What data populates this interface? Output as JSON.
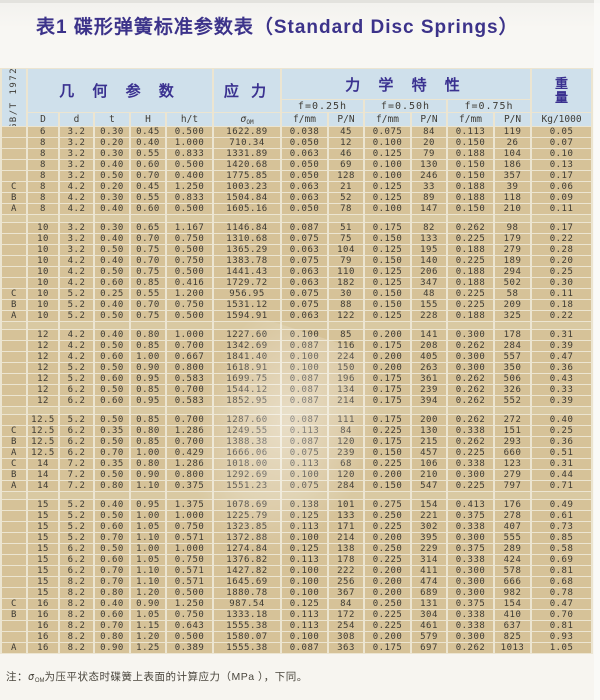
{
  "page": {
    "title": "表1 碟形弹簧标准参数表（Standard Disc Springs）",
    "standard_label": "GB/T 1972"
  },
  "table": {
    "header": {
      "geometry": "几 何 参 数",
      "stress": "应 力",
      "mechanical": "力 学 特 性",
      "weight_top": "重",
      "weight_bottom": "量",
      "deflections": [
        "f=0.25h",
        "f=0.50h",
        "f=0.75h"
      ],
      "columns": [
        "D",
        "d",
        "t",
        "H",
        "h/t"
      ],
      "sigma": "σ",
      "sigma_sub": "OM",
      "f_label": "f/mm",
      "p_label": "P/N",
      "weight_unit": "Kg/1000"
    },
    "colors": {
      "header_blue": "#cfe0eb",
      "cell_tan": "#d6c298",
      "grid_line": "#ece5d1",
      "title_purple": "#3c338a",
      "text_dark": "#3e3b34"
    },
    "groups": [
      {
        "rows": [
          [
            "",
            "6",
            "3.2",
            "0.30",
            "0.45",
            "0.500",
            "1622.89",
            "0.038",
            "45",
            "0.075",
            "84",
            "0.113",
            "119",
            "0.05"
          ],
          [
            "",
            "8",
            "3.2",
            "0.20",
            "0.40",
            "1.000",
            "710.34",
            "0.050",
            "12",
            "0.100",
            "20",
            "0.150",
            "26",
            "0.07"
          ],
          [
            "",
            "8",
            "3.2",
            "0.30",
            "0.55",
            "0.833",
            "1331.89",
            "0.063",
            "46",
            "0.125",
            "79",
            "0.188",
            "104",
            "0.10"
          ],
          [
            "",
            "8",
            "3.2",
            "0.40",
            "0.60",
            "0.500",
            "1420.68",
            "0.050",
            "69",
            "0.100",
            "130",
            "0.150",
            "186",
            "0.13"
          ],
          [
            "",
            "8",
            "3.2",
            "0.50",
            "0.70",
            "0.400",
            "1775.85",
            "0.050",
            "128",
            "0.100",
            "246",
            "0.150",
            "357",
            "0.17"
          ],
          [
            "C",
            "8",
            "4.2",
            "0.20",
            "0.45",
            "1.250",
            "1003.23",
            "0.063",
            "21",
            "0.125",
            "33",
            "0.188",
            "39",
            "0.06"
          ],
          [
            "B",
            "8",
            "4.2",
            "0.30",
            "0.55",
            "0.833",
            "1504.84",
            "0.063",
            "52",
            "0.125",
            "89",
            "0.188",
            "118",
            "0.09"
          ],
          [
            "A",
            "8",
            "4.2",
            "0.40",
            "0.60",
            "0.500",
            "1605.16",
            "0.050",
            "78",
            "0.100",
            "147",
            "0.150",
            "210",
            "0.11"
          ]
        ]
      },
      {
        "rows": [
          [
            "",
            "10",
            "3.2",
            "0.30",
            "0.65",
            "1.167",
            "1146.84",
            "0.087",
            "51",
            "0.175",
            "82",
            "0.262",
            "98",
            "0.17"
          ],
          [
            "",
            "10",
            "3.2",
            "0.40",
            "0.70",
            "0.750",
            "1310.68",
            "0.075",
            "75",
            "0.150",
            "133",
            "0.225",
            "179",
            "0.22"
          ],
          [
            "",
            "10",
            "3.2",
            "0.50",
            "0.75",
            "0.500",
            "1365.29",
            "0.063",
            "104",
            "0.125",
            "195",
            "0.188",
            "279",
            "0.28"
          ],
          [
            "",
            "10",
            "4.2",
            "0.40",
            "0.70",
            "0.750",
            "1383.78",
            "0.075",
            "79",
            "0.150",
            "140",
            "0.225",
            "189",
            "0.20"
          ],
          [
            "",
            "10",
            "4.2",
            "0.50",
            "0.75",
            "0.500",
            "1441.43",
            "0.063",
            "110",
            "0.125",
            "206",
            "0.188",
            "294",
            "0.25"
          ],
          [
            "",
            "10",
            "4.2",
            "0.60",
            "0.85",
            "0.416",
            "1729.72",
            "0.063",
            "182",
            "0.125",
            "347",
            "0.188",
            "502",
            "0.30"
          ],
          [
            "C",
            "10",
            "5.2",
            "0.25",
            "0.55",
            "1.200",
            "956.95",
            "0.075",
            "30",
            "0.150",
            "48",
            "0.225",
            "58",
            "0.11"
          ],
          [
            "B",
            "10",
            "5.2",
            "0.40",
            "0.70",
            "0.750",
            "1531.12",
            "0.075",
            "88",
            "0.150",
            "155",
            "0.225",
            "209",
            "0.18"
          ],
          [
            "A",
            "10",
            "5.2",
            "0.50",
            "0.75",
            "0.500",
            "1594.91",
            "0.063",
            "122",
            "0.125",
            "228",
            "0.188",
            "325",
            "0.22"
          ]
        ]
      },
      {
        "rows": [
          [
            "",
            "12",
            "4.2",
            "0.40",
            "0.80",
            "1.000",
            "1227.60",
            "0.100",
            "85",
            "0.200",
            "141",
            "0.300",
            "178",
            "0.31"
          ],
          [
            "",
            "12",
            "4.2",
            "0.50",
            "0.85",
            "0.700",
            "1342.69",
            "0.087",
            "116",
            "0.175",
            "208",
            "0.262",
            "284",
            "0.39"
          ],
          [
            "",
            "12",
            "4.2",
            "0.60",
            "1.00",
            "0.667",
            "1841.40",
            "0.100",
            "224",
            "0.200",
            "405",
            "0.300",
            "557",
            "0.47"
          ],
          [
            "",
            "12",
            "5.2",
            "0.50",
            "0.90",
            "0.800",
            "1618.91",
            "0.100",
            "150",
            "0.200",
            "263",
            "0.300",
            "350",
            "0.36"
          ],
          [
            "",
            "12",
            "5.2",
            "0.60",
            "0.95",
            "0.583",
            "1699.75",
            "0.087",
            "196",
            "0.175",
            "361",
            "0.262",
            "506",
            "0.43"
          ],
          [
            "",
            "12",
            "6.2",
            "0.50",
            "0.85",
            "0.700",
            "1544.12",
            "0.087",
            "134",
            "0.175",
            "239",
            "0.262",
            "326",
            "0.33"
          ],
          [
            "",
            "12",
            "6.2",
            "0.60",
            "0.95",
            "0.583",
            "1852.95",
            "0.087",
            "214",
            "0.175",
            "394",
            "0.262",
            "552",
            "0.39"
          ]
        ]
      },
      {
        "rows": [
          [
            "",
            "12.5",
            "5.2",
            "0.50",
            "0.85",
            "0.700",
            "1287.60",
            "0.087",
            "111",
            "0.175",
            "200",
            "0.262",
            "272",
            "0.40"
          ],
          [
            "C",
            "12.5",
            "6.2",
            "0.35",
            "0.80",
            "1.286",
            "1249.55",
            "0.113",
            "84",
            "0.225",
            "130",
            "0.338",
            "151",
            "0.25"
          ],
          [
            "B",
            "12.5",
            "6.2",
            "0.50",
            "0.85",
            "0.700",
            "1388.38",
            "0.087",
            "120",
            "0.175",
            "215",
            "0.262",
            "293",
            "0.36"
          ],
          [
            "A",
            "12.5",
            "6.2",
            "0.70",
            "1.00",
            "0.429",
            "1666.06",
            "0.075",
            "239",
            "0.150",
            "457",
            "0.225",
            "660",
            "0.51"
          ],
          [
            "C",
            "14",
            "7.2",
            "0.35",
            "0.80",
            "1.286",
            "1018.00",
            "0.113",
            "68",
            "0.225",
            "106",
            "0.338",
            "123",
            "0.31"
          ],
          [
            "B",
            "14",
            "7.2",
            "0.50",
            "0.90",
            "0.800",
            "1292.69",
            "0.100",
            "120",
            "0.200",
            "210",
            "0.300",
            "279",
            "0.44"
          ],
          [
            "A",
            "14",
            "7.2",
            "0.80",
            "1.10",
            "0.375",
            "1551.23",
            "0.075",
            "284",
            "0.150",
            "547",
            "0.225",
            "797",
            "0.71"
          ]
        ]
      },
      {
        "rows": [
          [
            "",
            "15",
            "5.2",
            "0.40",
            "0.95",
            "1.375",
            "1078.69",
            "0.138",
            "101",
            "0.275",
            "154",
            "0.413",
            "176",
            "0.49"
          ],
          [
            "",
            "15",
            "5.2",
            "0.50",
            "1.00",
            "1.000",
            "1225.79",
            "0.125",
            "133",
            "0.250",
            "221",
            "0.375",
            "278",
            "0.61"
          ],
          [
            "",
            "15",
            "5.2",
            "0.60",
            "1.05",
            "0.750",
            "1323.85",
            "0.113",
            "171",
            "0.225",
            "302",
            "0.338",
            "407",
            "0.73"
          ],
          [
            "",
            "15",
            "5.2",
            "0.70",
            "1.10",
            "0.571",
            "1372.88",
            "0.100",
            "214",
            "0.200",
            "395",
            "0.300",
            "555",
            "0.85"
          ],
          [
            "",
            "15",
            "6.2",
            "0.50",
            "1.00",
            "1.000",
            "1274.84",
            "0.125",
            "138",
            "0.250",
            "229",
            "0.375",
            "289",
            "0.58"
          ],
          [
            "",
            "15",
            "6.2",
            "0.60",
            "1.05",
            "0.750",
            "1376.82",
            "0.113",
            "178",
            "0.225",
            "314",
            "0.338",
            "424",
            "0.69"
          ],
          [
            "",
            "15",
            "6.2",
            "0.70",
            "1.10",
            "0.571",
            "1427.82",
            "0.100",
            "222",
            "0.200",
            "411",
            "0.300",
            "578",
            "0.81"
          ],
          [
            "",
            "15",
            "8.2",
            "0.70",
            "1.10",
            "0.571",
            "1645.69",
            "0.100",
            "256",
            "0.200",
            "474",
            "0.300",
            "666",
            "0.68"
          ],
          [
            "",
            "15",
            "8.2",
            "0.80",
            "1.20",
            "0.500",
            "1880.78",
            "0.100",
            "367",
            "0.200",
            "689",
            "0.300",
            "982",
            "0.78"
          ],
          [
            "C",
            "16",
            "8.2",
            "0.40",
            "0.90",
            "1.250",
            "987.54",
            "0.125",
            "84",
            "0.250",
            "131",
            "0.375",
            "154",
            "0.47"
          ],
          [
            "B",
            "16",
            "8.2",
            "0.60",
            "1.05",
            "0.750",
            "1333.18",
            "0.113",
            "172",
            "0.225",
            "304",
            "0.338",
            "410",
            "0.70"
          ],
          [
            "",
            "16",
            "8.2",
            "0.70",
            "1.15",
            "0.643",
            "1555.38",
            "0.113",
            "254",
            "0.225",
            "461",
            "0.338",
            "637",
            "0.81"
          ],
          [
            "",
            "16",
            "8.2",
            "0.80",
            "1.20",
            "0.500",
            "1580.07",
            "0.100",
            "308",
            "0.200",
            "579",
            "0.300",
            "825",
            "0.93"
          ],
          [
            "A",
            "16",
            "8.2",
            "0.90",
            "1.25",
            "0.389",
            "1555.38",
            "0.087",
            "363",
            "0.175",
            "697",
            "0.262",
            "1013",
            "1.05"
          ]
        ]
      }
    ]
  },
  "footnote": {
    "prefix": "注：",
    "sigma": "σ",
    "sigma_sub": "OM",
    "text": "为压平状态时碟簧上表面的计算应力（MPa ），下同。"
  }
}
